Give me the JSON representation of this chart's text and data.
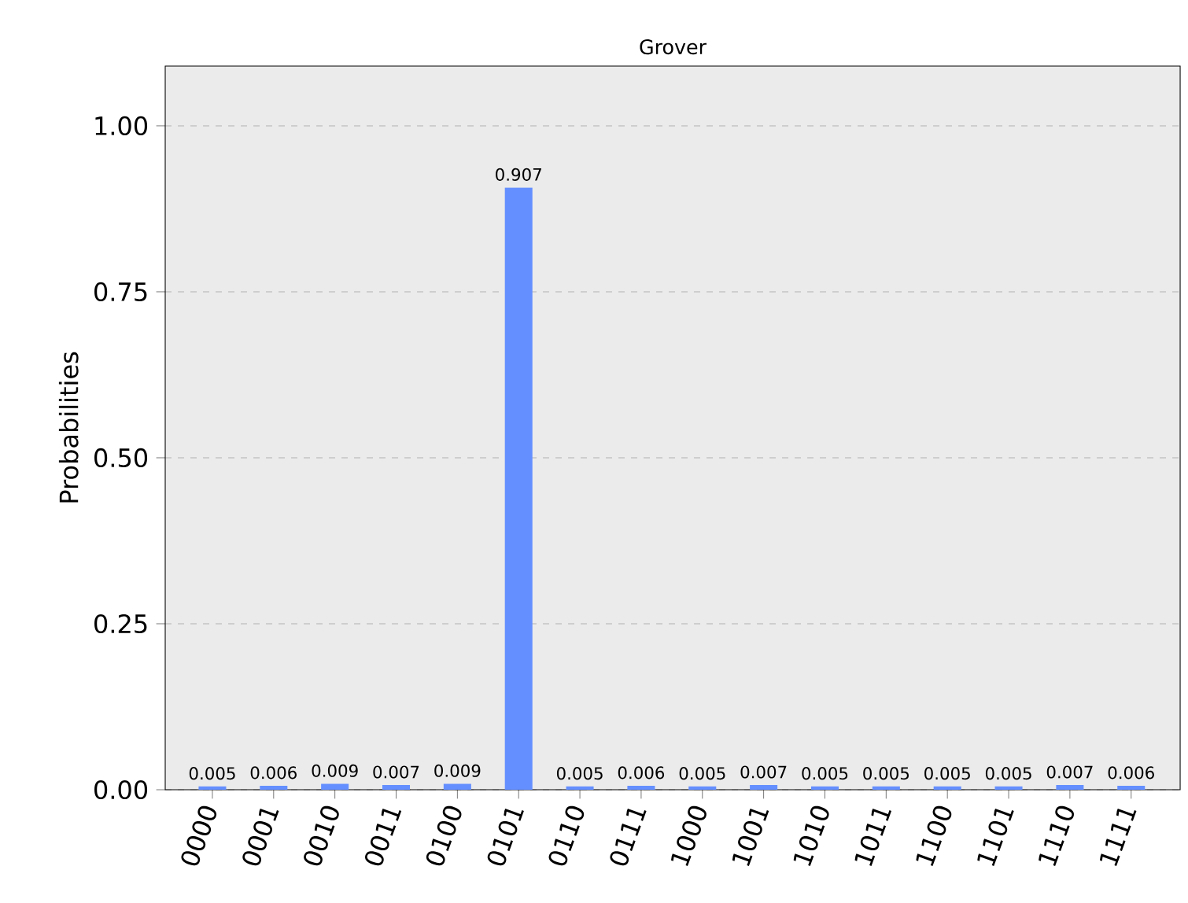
{
  "chart_data": {
    "type": "bar",
    "title": "Grover",
    "ylabel": "Probabilities",
    "categories": [
      "0000",
      "0001",
      "0010",
      "0011",
      "0100",
      "0101",
      "0110",
      "0111",
      "1000",
      "1001",
      "1010",
      "1011",
      "1100",
      "1101",
      "1110",
      "1111"
    ],
    "values": [
      0.005,
      0.006,
      0.009,
      0.007,
      0.009,
      0.907,
      0.005,
      0.006,
      0.005,
      0.007,
      0.005,
      0.005,
      0.005,
      0.005,
      0.007,
      0.006
    ],
    "color": "#648fff",
    "ylim": [
      0,
      1.09
    ],
    "yticks": [
      "0.00",
      "0.25",
      "0.50",
      "0.75",
      "1.00"
    ],
    "grid": "y",
    "data_labels": true
  }
}
